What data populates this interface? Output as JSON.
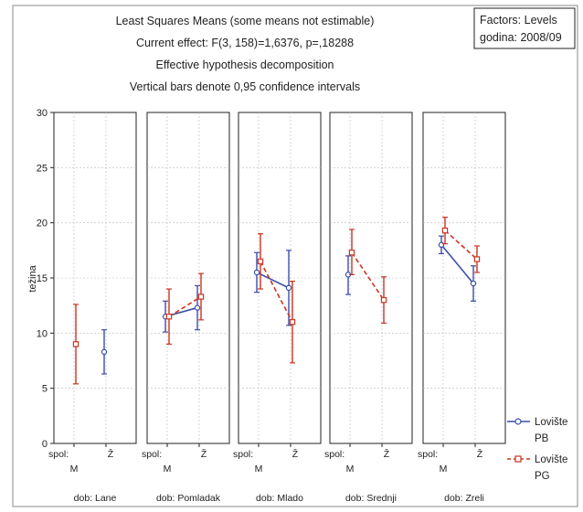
{
  "header": {
    "title": "Least Squares Means (some means not estimable)",
    "effect": "Current effect: F(3, 158)=1,6376, p=,18288",
    "decomposition": "Effective hypothesis decomposition",
    "ci_note": "Vertical bars denote 0,95 confidence intervals"
  },
  "factors_box": {
    "line1": "Factors: Levels",
    "line2": "godina: 2008/09"
  },
  "chart_data": {
    "type": "line",
    "title": "Least Squares Means (some means not estimable)",
    "ylabel": "težina",
    "ylim": [
      0,
      30
    ],
    "yticks": [
      "0",
      "5",
      "10",
      "15",
      "20",
      "25",
      "30"
    ],
    "grid": true,
    "legend_placement": "bottom-right",
    "x_factor_label": "spol:",
    "x_levels": [
      "M",
      "Ž"
    ],
    "panel_factor": "dob",
    "panels": [
      "dob: Lane",
      "dob: Pomladak",
      "dob: Mlado",
      "dob: Srednji",
      "dob: Zreli"
    ],
    "series": [
      {
        "name": "Lovište PB",
        "color": "#3a4fa8",
        "dashed": false,
        "points": [
          [
            null,
            {
              "mean": 8.3,
              "lo": 6.3,
              "hi": 10.3
            }
          ],
          [
            {
              "mean": 11.5,
              "lo": 10.1,
              "hi": 12.9
            },
            {
              "mean": 12.3,
              "lo": 10.3,
              "hi": 14.3
            }
          ],
          [
            {
              "mean": 15.5,
              "lo": 13.7,
              "hi": 17.3
            },
            {
              "mean": 14.1,
              "lo": 10.7,
              "hi": 17.5
            }
          ],
          [
            {
              "mean": 15.3,
              "lo": 13.5,
              "hi": 17.0
            },
            null
          ],
          [
            {
              "mean": 18.0,
              "lo": 17.2,
              "hi": 18.8
            },
            {
              "mean": 14.5,
              "lo": 12.9,
              "hi": 16.1
            }
          ]
        ]
      },
      {
        "name": "Lovište PG",
        "color": "#cc3322",
        "dashed": true,
        "points": [
          [
            {
              "mean": 9.0,
              "lo": 5.4,
              "hi": 12.6
            },
            null
          ],
          [
            {
              "mean": 11.5,
              "lo": 9.0,
              "hi": 14.0
            },
            {
              "mean": 13.3,
              "lo": 11.2,
              "hi": 15.4
            }
          ],
          [
            {
              "mean": 16.5,
              "lo": 14.0,
              "hi": 19.0
            },
            {
              "mean": 11.0,
              "lo": 7.3,
              "hi": 14.7
            }
          ],
          [
            {
              "mean": 17.3,
              "lo": 15.3,
              "hi": 19.4
            },
            {
              "mean": 13.0,
              "lo": 10.9,
              "hi": 15.1
            }
          ],
          [
            {
              "mean": 19.3,
              "lo": 18.1,
              "hi": 20.5
            },
            {
              "mean": 16.7,
              "lo": 15.5,
              "hi": 17.9
            }
          ]
        ]
      }
    ]
  },
  "legend": {
    "pb_name": "Lovište",
    "pb_sub": "PB",
    "pg_name": "Lovište",
    "pg_sub": "PG"
  }
}
